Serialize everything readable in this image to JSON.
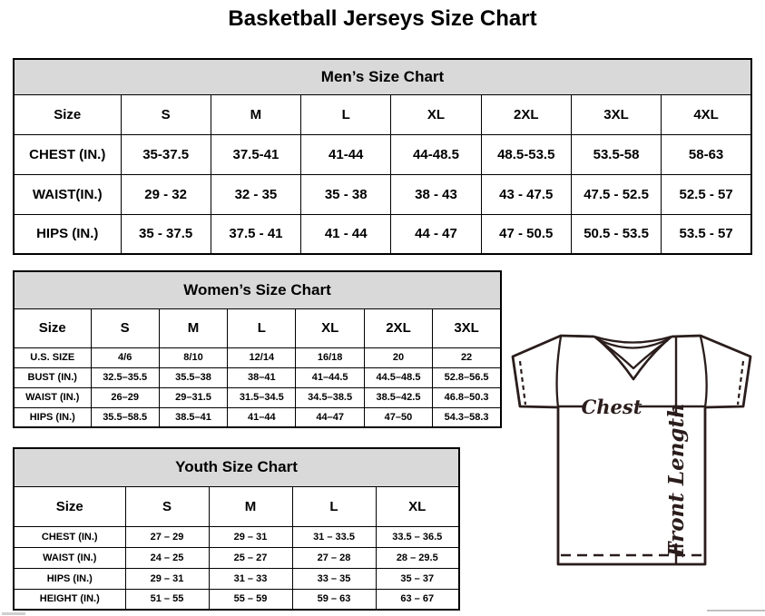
{
  "page_title": "Basketball Jerseys Size Chart",
  "tables": [
    {
      "id": "men",
      "title": "Men’s Size Chart",
      "header": [
        "Size",
        "S",
        "M",
        "L",
        "XL",
        "2XL",
        "3XL",
        "4XL"
      ],
      "rows": [
        [
          "CHEST (IN.)",
          "35-37.5",
          "37.5-41",
          "41-44",
          "44-48.5",
          "48.5-53.5",
          "53.5-58",
          "58-63"
        ],
        [
          "WAIST(IN.)",
          "29 - 32",
          "32 - 35",
          "35 - 38",
          "38 - 43",
          "43 - 47.5",
          "47.5 - 52.5",
          "52.5 - 57"
        ],
        [
          "HIPS (IN.)",
          "35 - 37.5",
          "37.5 - 41",
          "41 - 44",
          "44 - 47",
          "47 - 50.5",
          "50.5 - 53.5",
          "53.5 - 57"
        ]
      ]
    },
    {
      "id": "women",
      "title": "Women’s Size Chart",
      "header": [
        "Size",
        "S",
        "M",
        "L",
        "XL",
        "2XL",
        "3XL"
      ],
      "rows": [
        [
          "U.S. SIZE",
          "4/6",
          "8/10",
          "12/14",
          "16/18",
          "20",
          "22"
        ],
        [
          "BUST (IN.)",
          "32.5–35.5",
          "35.5–38",
          "38–41",
          "41–44.5",
          "44.5–48.5",
          "52.8–56.5"
        ],
        [
          "WAIST (IN.)",
          "26–29",
          "29–31.5",
          "31.5–34.5",
          "34.5–38.5",
          "38.5–42.5",
          "46.8–50.3"
        ],
        [
          "HIPS (IN.)",
          "35.5–58.5",
          "38.5–41",
          "41–44",
          "44–47",
          "47–50",
          "54.3–58.3"
        ]
      ]
    },
    {
      "id": "youth",
      "title": "Youth Size Chart",
      "header": [
        "Size",
        "S",
        "M",
        "L",
        "XL"
      ],
      "rows": [
        [
          "CHEST (IN.)",
          "27 – 29",
          "29 – 31",
          "31 – 33.5",
          "33.5 – 36.5"
        ],
        [
          "WAIST (IN.)",
          "24 – 25",
          "25 – 27",
          "27 – 28",
          "28 – 29.5"
        ],
        [
          "HIPS (IN.)",
          "29 – 31",
          "31 – 33",
          "33 – 35",
          "35 – 37"
        ],
        [
          "HEIGHT (IN.)",
          "51 – 55",
          "55 – 59",
          "59 – 63",
          "63 – 67"
        ]
      ]
    }
  ],
  "diagram": {
    "chest_label": "Chest",
    "front_length_label": "Front Length"
  },
  "colors": {
    "header_bg": "#d9d9d9",
    "table_border": "#000000",
    "jersey_outline": "#2a1d1b",
    "scroll_fragment": "#cfcfcf"
  }
}
